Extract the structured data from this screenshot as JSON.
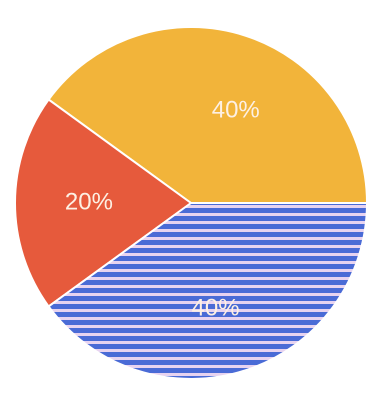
{
  "chart_data": {
    "type": "pie",
    "title": "",
    "slices": [
      {
        "label": "40%",
        "value": 40,
        "color": "#f2b43a"
      },
      {
        "label": "20%",
        "value": 20,
        "color": "#e65a3c"
      },
      {
        "label": "40%",
        "value": 40,
        "color": "#4a6bd6",
        "stripe_color": "#e7d3f0"
      }
    ],
    "legend": "none"
  }
}
